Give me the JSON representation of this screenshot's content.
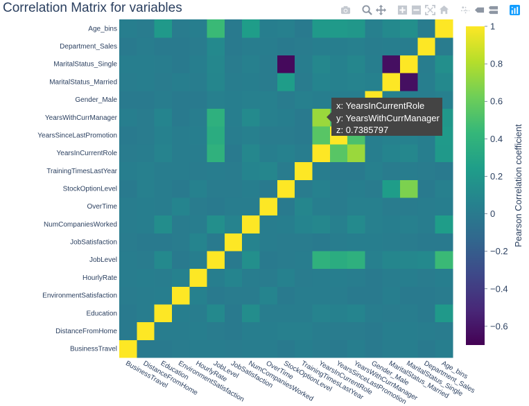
{
  "title": "Correlation Matrix for variables",
  "modebar": {
    "icons": [
      "camera-icon",
      "zoom-icon",
      "pan-icon",
      "zoom-in-icon",
      "zoom-out-icon",
      "autoscale-icon",
      "reset-axes-icon",
      "spike-lines-icon",
      "hover-closest-icon",
      "hover-compare-icon",
      "plotly-logo-icon"
    ]
  },
  "hover": {
    "x_line": "x: YearsInCurrentRole",
    "y_line": "y: YearsWithCurrManager",
    "z_line": "z: 0.7385797"
  },
  "chart_data": {
    "type": "heatmap",
    "title": "Correlation Matrix for variables",
    "variables": [
      "BusinessTravel",
      "DistanceFromHome",
      "Education",
      "EnvironmentSatisfaction",
      "HourlyRate",
      "JobLevel",
      "JobSatisfaction",
      "NumCompaniesWorked",
      "OverTime",
      "StockOptionLevel",
      "TrainingTimesLastYear",
      "YearsInCurrentRole",
      "YearsSinceLastPromotion",
      "YearsWithCurrManager",
      "Gender_Male",
      "MaritalStatus_Married",
      "MaritalStatus_Single",
      "Department_Sales",
      "Age_bins"
    ],
    "z": [
      [
        1,
        0,
        0,
        0.01,
        0.02,
        0.02,
        0.01,
        0.02,
        0.02,
        0,
        0.03,
        0.01,
        0,
        0.03,
        0,
        0.02,
        0.03,
        0,
        0.03
      ],
      [
        0,
        1,
        0.02,
        0.02,
        0.03,
        0.01,
        0,
        0.03,
        0.03,
        0.04,
        0.04,
        0.02,
        0.01,
        0.01,
        0,
        0.03,
        0.03,
        0.02,
        0.01
      ],
      [
        0,
        0.02,
        1,
        0.03,
        0.02,
        0.1,
        0,
        0.13,
        0.02,
        0.02,
        0.02,
        0.06,
        0.05,
        0.07,
        0.02,
        0.01,
        0.02,
        0,
        0.21
      ],
      [
        0.01,
        0.02,
        0.03,
        1,
        0.05,
        0,
        0.01,
        0.01,
        0.07,
        0,
        0.02,
        0.02,
        0.02,
        0,
        0,
        0.03,
        0,
        0,
        0.01
      ],
      [
        0.02,
        0.03,
        0.02,
        0.05,
        1,
        0.03,
        0.07,
        0.02,
        0.01,
        0.05,
        0.01,
        0.02,
        0.03,
        0.02,
        0,
        0.02,
        0.03,
        0.01,
        0.03
      ],
      [
        0.02,
        0.01,
        0.1,
        0,
        0.03,
        1,
        0,
        0.14,
        0,
        0.01,
        0.02,
        0.39,
        0.35,
        0.38,
        0.04,
        0.08,
        0.09,
        0.1,
        0.45
      ],
      [
        0.01,
        0,
        0,
        0.01,
        0.07,
        0,
        1,
        0.06,
        0.02,
        0.01,
        0.01,
        0,
        0.02,
        0.03,
        0.03,
        0.02,
        0.01,
        0,
        0
      ],
      [
        0.02,
        0.03,
        0.13,
        0.01,
        0.02,
        0.14,
        0.06,
        1,
        0.02,
        0.03,
        0.07,
        0.09,
        0.04,
        0.11,
        0.04,
        0.03,
        0.04,
        0.02,
        0.24
      ],
      [
        0.02,
        0.03,
        0.02,
        0.07,
        0.01,
        0,
        0.02,
        0.02,
        1,
        0,
        0.08,
        0.03,
        0.01,
        0.04,
        0.04,
        0.01,
        0.01,
        0.02,
        0.03
      ],
      [
        0,
        0.04,
        0.02,
        0,
        0.05,
        0.01,
        0.01,
        0.03,
        0,
        1,
        0.01,
        0.05,
        0.01,
        0.03,
        0.01,
        0.24,
        0.66,
        0,
        0.04
      ],
      [
        0.03,
        0.04,
        0.02,
        0.02,
        0.01,
        0.02,
        0.01,
        0.07,
        0.08,
        0.01,
        1,
        0.02,
        0,
        0,
        0.04,
        0.01,
        0.02,
        0.01,
        0
      ],
      [
        0.01,
        0.02,
        0.06,
        0.02,
        0.02,
        0.39,
        0,
        0.09,
        0.03,
        0.05,
        0.02,
        1,
        0.55,
        0.7385797,
        0.03,
        0.07,
        0.09,
        0.03,
        0.21
      ],
      [
        0,
        0.01,
        0.05,
        0.02,
        0.03,
        0.35,
        0.02,
        0.04,
        0.01,
        0.01,
        0,
        0.55,
        1,
        0.51,
        0.03,
        0.05,
        0.05,
        0.03,
        0.22
      ],
      [
        0.03,
        0.01,
        0.07,
        0,
        0.02,
        0.38,
        0.03,
        0.11,
        0.04,
        0.03,
        0,
        0.74,
        0.51,
        1,
        0.03,
        0.06,
        0.08,
        0.04,
        0.2
      ],
      [
        0,
        0,
        0.02,
        0,
        0,
        0.04,
        0.03,
        0.04,
        0.04,
        0.01,
        0.04,
        0.03,
        0.03,
        0.03,
        1,
        0.05,
        0.03,
        0.02,
        0.04
      ],
      [
        0.02,
        0.03,
        0.01,
        0.03,
        0.02,
        0.08,
        0.02,
        0.03,
        0.01,
        0.24,
        0.01,
        0.07,
        0.05,
        0.06,
        0.05,
        1,
        -0.63,
        0.03,
        0.1
      ],
      [
        0.03,
        0.03,
        0.02,
        0,
        0.03,
        0.09,
        0.01,
        0.04,
        0.01,
        -0.66,
        0.02,
        0.09,
        0.05,
        0.08,
        0.03,
        -0.63,
        1,
        0.02,
        0.14
      ],
      [
        0,
        0.02,
        0,
        0,
        0.01,
        0.1,
        0,
        0.02,
        0.02,
        0,
        0.01,
        0.03,
        0.03,
        0.04,
        0.02,
        0.03,
        0.02,
        1,
        0.01
      ],
      [
        0.03,
        0.01,
        0.21,
        0.01,
        0.03,
        0.45,
        0,
        0.24,
        0.03,
        0.04,
        0,
        0.21,
        0.22,
        0.2,
        0.04,
        0.1,
        0.14,
        0.01,
        1
      ]
    ],
    "zmin": -0.7,
    "zmax": 1,
    "colorscale": "Viridis",
    "colors": [
      "#440154",
      "#482878",
      "#3e4989",
      "#31688e",
      "#26828e",
      "#1f9e89",
      "#35b779",
      "#6ece58",
      "#b5de2b",
      "#fde725"
    ],
    "colorbar": {
      "title": "Pearson Correlation coefficient",
      "ticks": [
        1,
        0.8,
        0.6,
        0.4,
        0.2,
        0,
        -0.2,
        -0.4,
        -0.6
      ],
      "tick_labels": [
        "1",
        "0.8",
        "0.6",
        "0.4",
        "0.2",
        "0",
        "−0.2",
        "−0.4",
        "−0.6"
      ]
    }
  }
}
